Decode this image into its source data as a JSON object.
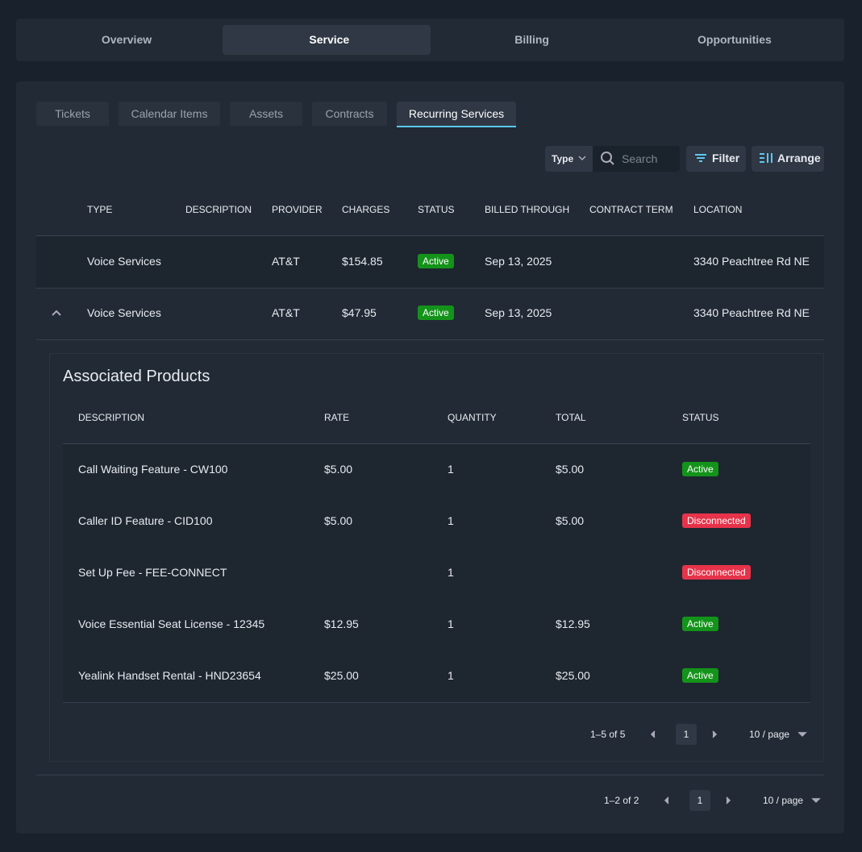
{
  "tabs": [
    "Overview",
    "Service",
    "Billing",
    "Opportunities"
  ],
  "subtabs": [
    "Tickets",
    "Calendar Items",
    "Assets",
    "Contracts",
    "Recurring Services"
  ],
  "toolbar": {
    "type": "Type",
    "search": "Search",
    "filter": "Filter",
    "arrange": "Arrange"
  },
  "table": {
    "columns": [
      "TYPE",
      "DESCRIPTION",
      "PROVIDER",
      "CHARGES",
      "STATUS",
      "BILLED THROUGH",
      "CONTRACT TERM",
      "LOCATION"
    ],
    "rows": [
      {
        "type": "Voice Services",
        "provider": "AT&T",
        "charges": "$154.85",
        "status": "Active",
        "billed_through": "Sep 13, 2025",
        "location": "3340 Peachtree Rd NE"
      },
      {
        "type": "Voice Services",
        "provider": "AT&T",
        "charges": "$47.95",
        "status": "Active",
        "billed_through": "Sep 13, 2025",
        "location": "3340 Peachtree Rd NE"
      }
    ],
    "pagination": {
      "range": "1–2 of 2",
      "page": "1",
      "size": "10 / page"
    }
  },
  "products": {
    "title": "Associated Products",
    "columns": [
      "DESCRIPTION",
      "RATE",
      "QUANTITY",
      "TOTAL",
      "STATUS"
    ],
    "rows": [
      {
        "description": "Call Waiting Feature - CW100",
        "rate": "$5.00",
        "quantity": "1",
        "total": "$5.00",
        "status": "Active"
      },
      {
        "description": "Caller ID Feature - CID100",
        "rate": "$5.00",
        "quantity": "1",
        "total": "$5.00",
        "status": "Disconnected"
      },
      {
        "description": "Set Up Fee - FEE-CONNECT",
        "quantity": "1",
        "status": "Disconnected"
      },
      {
        "description": "Voice Essential Seat License - 12345",
        "rate": "$12.95",
        "quantity": "1",
        "total": "$12.95",
        "status": "Active"
      },
      {
        "description": "Yealink Handset Rental - HND23654",
        "rate": "$25.00",
        "quantity": "1",
        "total": "$25.00",
        "status": "Active"
      }
    ],
    "pagination": {
      "range": "1–5 of 5",
      "page": "1",
      "size": "10 / page"
    }
  }
}
